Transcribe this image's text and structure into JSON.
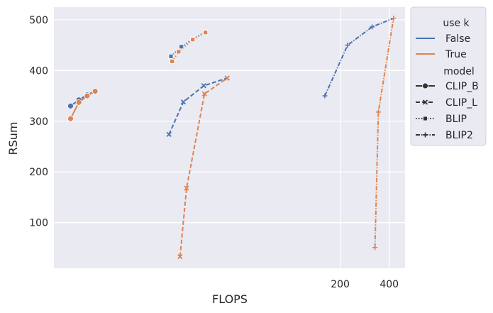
{
  "chart_data": {
    "type": "line",
    "title": "",
    "xlabel": "FLOPS",
    "ylabel": "RSum",
    "x_scale": "log",
    "x_ticks": [
      200,
      400
    ],
    "y_ticks": [
      100,
      200,
      300,
      400,
      500
    ],
    "ylim": [
      10,
      525
    ],
    "grid": true,
    "legend_position": "outside-right",
    "legend": {
      "hue_title": "use k",
      "hue_entries": [
        {
          "label": "False",
          "color": "#4c72b0"
        },
        {
          "label": "True",
          "color": "#dd8452"
        }
      ],
      "style_title": "model",
      "style_entries": [
        {
          "label": "CLIP_B",
          "dash": "solid",
          "marker": "circle"
        },
        {
          "label": "CLIP_L",
          "dash": "dashed",
          "marker": "x"
        },
        {
          "label": "BLIP",
          "dash": "dotted",
          "marker": "square"
        },
        {
          "label": "BLIP2",
          "dash": "dashdot",
          "marker": "plus"
        }
      ]
    },
    "series": [
      {
        "model": "CLIP_B",
        "use_k": "False",
        "x": [
          4.43,
          4.98,
          5.6,
          6.27
        ],
        "y": [
          330,
          342,
          352,
          359
        ]
      },
      {
        "model": "CLIP_B",
        "use_k": "True",
        "x": [
          4.43,
          4.98,
          5.6,
          6.27
        ],
        "y": [
          305,
          337,
          350,
          359
        ]
      },
      {
        "model": "CLIP_L",
        "use_k": "False",
        "x": [
          17.8,
          21.8,
          29.1,
          40.5
        ],
        "y": [
          274,
          338,
          370,
          385
        ]
      },
      {
        "model": "CLIP_L",
        "use_k": "True",
        "x": [
          20.8,
          22.8,
          29.4,
          40.5
        ],
        "y": [
          33,
          168,
          354,
          385
        ]
      },
      {
        "model": "BLIP",
        "use_k": "False",
        "x": [
          18.3,
          21.2,
          24.9,
          29.8
        ],
        "y": [
          428,
          447,
          462,
          476
        ]
      },
      {
        "model": "BLIP",
        "use_k": "True",
        "x": [
          18.6,
          20.4,
          24.9,
          29.8
        ],
        "y": [
          418,
          437,
          461,
          475
        ]
      },
      {
        "model": "BLIP2",
        "use_k": "False",
        "x": [
          161,
          222,
          314,
          425
        ],
        "y": [
          350,
          450,
          486,
          503
        ]
      },
      {
        "model": "BLIP2",
        "use_k": "True",
        "x": [
          327,
          343,
          425
        ],
        "y": [
          51,
          318,
          503
        ]
      }
    ]
  }
}
